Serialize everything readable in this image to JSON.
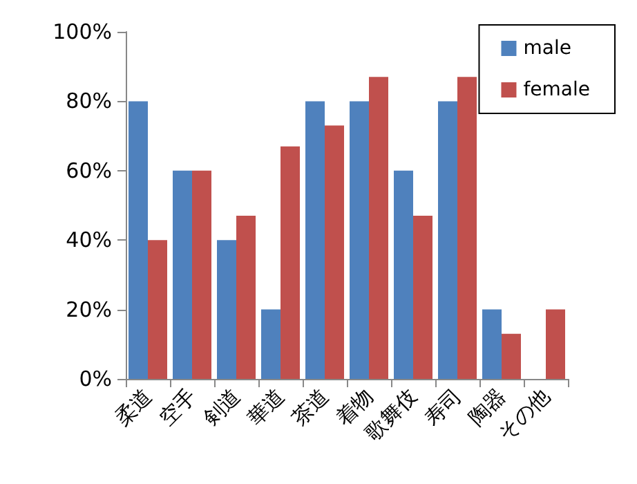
{
  "chart_data": {
    "type": "bar",
    "categories": [
      "柔道",
      "空手",
      "剣道",
      "華道",
      "茶道",
      "着物",
      "歌舞伎",
      "寿司",
      "陶器",
      "その他"
    ],
    "series": [
      {
        "name": "male",
        "color": "#4f81bd",
        "values": [
          80,
          60,
          40,
          20,
          80,
          80,
          60,
          80,
          20,
          0
        ]
      },
      {
        "name": "female",
        "color": "#c0504d",
        "values": [
          40,
          60,
          47,
          67,
          73,
          87,
          47,
          87,
          13,
          20
        ]
      }
    ],
    "ylim": [
      0,
      100
    ],
    "yticks": [
      {
        "value": 0,
        "label": "0%"
      },
      {
        "value": 20,
        "label": "20%"
      },
      {
        "value": 40,
        "label": "40%"
      },
      {
        "value": 60,
        "label": "60%"
      },
      {
        "value": 80,
        "label": "80%"
      },
      {
        "value": 100,
        "label": "100%"
      }
    ],
    "grid": false,
    "legend": "top right"
  }
}
